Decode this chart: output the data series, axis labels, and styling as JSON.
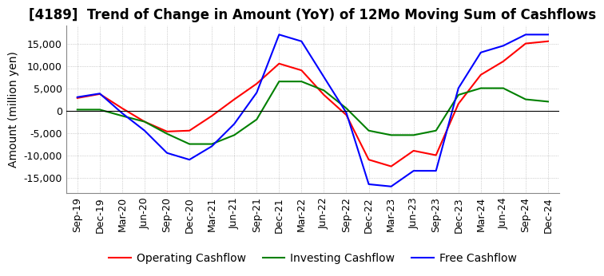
{
  "title": "[4189]  Trend of Change in Amount (YoY) of 12Mo Moving Sum of Cashflows",
  "ylabel": "Amount (million yen)",
  "x_labels": [
    "Sep-19",
    "Dec-19",
    "Mar-20",
    "Jun-20",
    "Sep-20",
    "Dec-20",
    "Mar-21",
    "Jun-21",
    "Sep-21",
    "Dec-21",
    "Mar-22",
    "Jun-22",
    "Sep-22",
    "Dec-22",
    "Mar-23",
    "Jun-23",
    "Sep-23",
    "Dec-23",
    "Mar-24",
    "Jun-24",
    "Sep-24",
    "Dec-24"
  ],
  "operating": [
    2800,
    3700,
    500,
    -2500,
    -4700,
    -4500,
    -1200,
    2500,
    6000,
    10500,
    9000,
    3500,
    -1000,
    -11000,
    -12500,
    -9000,
    -10000,
    1500,
    8000,
    11000,
    15000,
    15500
  ],
  "investing": [
    200,
    200,
    -1200,
    -2500,
    -5200,
    -7500,
    -7500,
    -5500,
    -2000,
    6500,
    6500,
    4500,
    500,
    -4500,
    -5500,
    -5500,
    -4500,
    3500,
    5000,
    5000,
    2500,
    2000
  ],
  "free": [
    3000,
    3800,
    -600,
    -4500,
    -9500,
    -11000,
    -8000,
    -3000,
    4000,
    17000,
    15500,
    7500,
    -500,
    -16500,
    -17000,
    -13500,
    -13500,
    5000,
    13000,
    14500,
    17000,
    17000
  ],
  "ylim": [
    -18500,
    19000
  ],
  "yticks": [
    -15000,
    -10000,
    -5000,
    0,
    5000,
    10000,
    15000
  ],
  "operating_color": "#ff0000",
  "investing_color": "#008000",
  "free_color": "#0000ff",
  "background_color": "#ffffff",
  "grid_color": "#aaaaaa",
  "title_fontsize": 12,
  "label_fontsize": 10,
  "tick_fontsize": 9
}
